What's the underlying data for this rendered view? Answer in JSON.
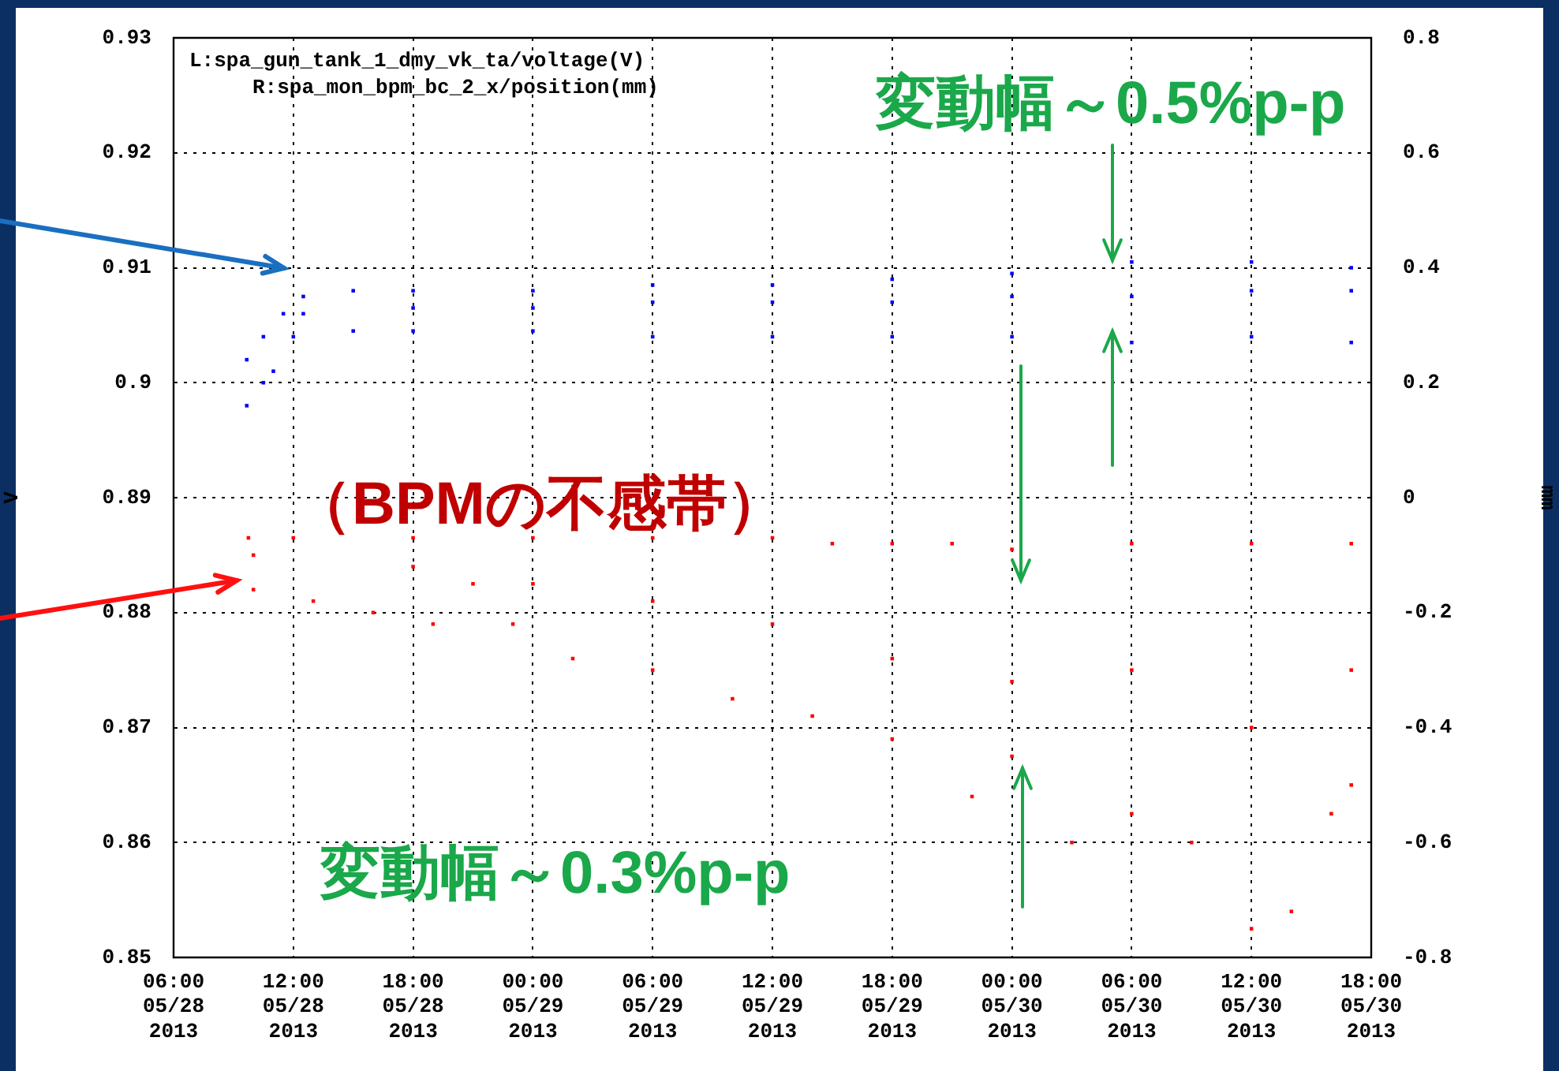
{
  "chart_data": {
    "type": "scatter",
    "annotations": [
      "L:spa_gun_tank_1_dmy_vk_ta/voltage(V)",
      "R:spa_mon_bpm_bc_2_x/position(mm)",
      "変動幅～0.5%p-p",
      "（BPMの不感帯）",
      "変動幅～0.3%p-p"
    ],
    "ylabel": "V",
    "y2label": "mm",
    "xlim": [
      "2013-05-28T06:00",
      "2013-05-30T18:00"
    ],
    "xticks": [
      {
        "value": "2013-05-28T06:00",
        "label": "06:00\n05/28\n2013"
      },
      {
        "value": "2013-05-28T12:00",
        "label": "12:00\n05/28\n2013"
      },
      {
        "value": "2013-05-28T18:00",
        "label": "18:00\n05/28\n2013"
      },
      {
        "value": "2013-05-29T00:00",
        "label": "00:00\n05/29\n2013"
      },
      {
        "value": "2013-05-29T06:00",
        "label": "06:00\n05/29\n2013"
      },
      {
        "value": "2013-05-29T12:00",
        "label": "12:00\n05/29\n2013"
      },
      {
        "value": "2013-05-29T18:00",
        "label": "18:00\n05/29\n2013"
      },
      {
        "value": "2013-05-30T00:00",
        "label": "00:00\n05/30\n2013"
      },
      {
        "value": "2013-05-30T06:00",
        "label": "06:00\n05/30\n2013"
      },
      {
        "value": "2013-05-30T12:00",
        "label": "12:00\n05/30\n2013"
      },
      {
        "value": "2013-05-30T18:00",
        "label": "18:00\n05/30\n2013"
      }
    ],
    "ylim": [
      0.85,
      0.93
    ],
    "yticks": [
      0.85,
      0.86,
      0.87,
      0.88,
      0.89,
      0.9,
      0.91,
      0.92,
      0.93
    ],
    "y2lim": [
      -0.8,
      0.8
    ],
    "y2ticks": [
      -0.8,
      -0.6,
      -0.4,
      -0.2,
      0,
      0.2,
      0.4,
      0.6,
      0.8
    ],
    "grid": true,
    "marker": "square",
    "series": [
      {
        "color": "#0000ff",
        "x": [
          "2013-05-28T09:40",
          "2013-05-28T10:30",
          "2013-05-28T11:00",
          "2013-05-28T12:00",
          "2013-05-28T15:00",
          "2013-05-28T18:00",
          "2013-05-29T00:00",
          "2013-05-29T06:00",
          "2013-05-29T12:00",
          "2013-05-29T18:00",
          "2013-05-30T00:00",
          "2013-05-30T06:00",
          "2013-05-30T12:00",
          "2013-05-30T17:00",
          "2013-05-28T09:40",
          "2013-05-28T10:30",
          "2013-05-28T11:30",
          "2013-05-28T12:30",
          "2013-05-28T15:00",
          "2013-05-28T18:00",
          "2013-05-29T00:00",
          "2013-05-29T06:00",
          "2013-05-29T12:00",
          "2013-05-29T18:00",
          "2013-05-30T00:00",
          "2013-05-30T06:00",
          "2013-05-30T12:00",
          "2013-05-30T17:00",
          "2013-05-28T12:30",
          "2013-05-28T18:00",
          "2013-05-29T00:00",
          "2013-05-29T06:00",
          "2013-05-29T12:00",
          "2013-05-29T18:00",
          "2013-05-30T00:00",
          "2013-05-30T06:00",
          "2013-05-30T12:00",
          "2013-05-30T17:00"
        ],
        "values": [
          0.898,
          0.9,
          0.901,
          0.904,
          0.9045,
          0.9045,
          0.9045,
          0.904,
          0.904,
          0.904,
          0.904,
          0.9035,
          0.904,
          0.9035,
          0.902,
          0.904,
          0.906,
          0.9075,
          0.908,
          0.908,
          0.908,
          0.9085,
          0.9085,
          0.909,
          0.9095,
          0.9105,
          0.9105,
          0.91,
          0.906,
          0.9065,
          0.9065,
          0.907,
          0.907,
          0.907,
          0.9075,
          0.9075,
          0.908,
          0.908
        ]
      },
      {
        "color": "#ff0000",
        "axis": "y2",
        "x": [
          "2013-05-28T09:45",
          "2013-05-28T12:00",
          "2013-05-28T18:00",
          "2013-05-29T00:00",
          "2013-05-29T06:00",
          "2013-05-29T12:00",
          "2013-05-29T15:00",
          "2013-05-29T18:00",
          "2013-05-29T21:00",
          "2013-05-30T00:00",
          "2013-05-30T06:00",
          "2013-05-30T12:00",
          "2013-05-30T17:00",
          "2013-05-28T10:00",
          "2013-05-28T13:00",
          "2013-05-28T16:00",
          "2013-05-28T19:00",
          "2013-05-28T21:00",
          "2013-05-28T23:00",
          "2013-05-29T02:00",
          "2013-05-29T06:00",
          "2013-05-29T10:00",
          "2013-05-29T14:00",
          "2013-05-29T18:00",
          "2013-05-29T22:00",
          "2013-05-30T00:00",
          "2013-05-30T03:00",
          "2013-05-30T06:00",
          "2013-05-30T09:00",
          "2013-05-30T12:00",
          "2013-05-30T14:00",
          "2013-05-30T16:00",
          "2013-05-30T17:00",
          "2013-05-28T10:00",
          "2013-05-28T18:00",
          "2013-05-29T00:00",
          "2013-05-29T06:00",
          "2013-05-29T12:00",
          "2013-05-29T18:00",
          "2013-05-30T00:00",
          "2013-05-30T06:00",
          "2013-05-30T12:00",
          "2013-05-30T17:00"
        ],
        "values": [
          -0.07,
          -0.07,
          -0.07,
          -0.07,
          -0.07,
          -0.07,
          -0.08,
          -0.08,
          -0.08,
          -0.09,
          -0.08,
          -0.08,
          -0.08,
          -0.16,
          -0.18,
          -0.2,
          -0.22,
          -0.15,
          -0.22,
          -0.28,
          -0.3,
          -0.35,
          -0.38,
          -0.42,
          -0.52,
          -0.45,
          -0.6,
          -0.55,
          -0.6,
          -0.75,
          -0.72,
          -0.55,
          -0.5,
          -0.1,
          -0.12,
          -0.15,
          -0.18,
          -0.22,
          -0.28,
          -0.32,
          -0.3,
          -0.4,
          -0.3
        ]
      }
    ]
  }
}
